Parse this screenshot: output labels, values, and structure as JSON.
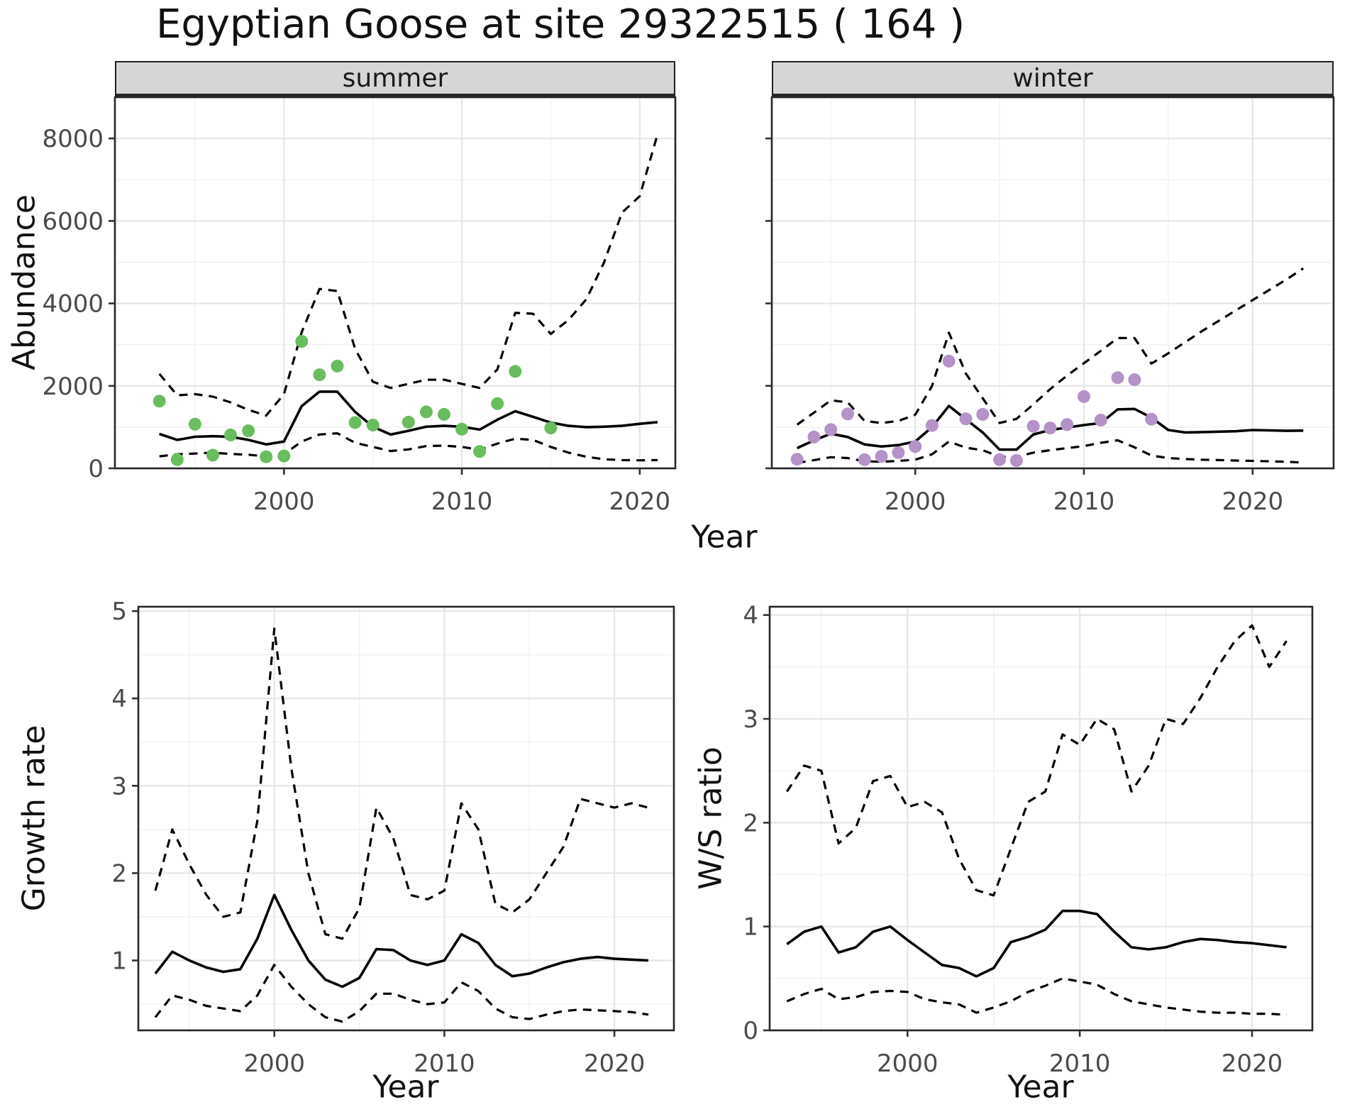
{
  "title": "Egyptian Goose at site 29322515 ( 164 )",
  "labels": {
    "year": "Year",
    "abundance": "Abundance",
    "growth_rate": "Growth rate",
    "ws_ratio": "W/S ratio"
  },
  "colors": {
    "summer_points": "#6ABD5F",
    "winter_points": "#B592C7",
    "line": "#000000",
    "strip_bg": "#D6D6D6",
    "grid_major": "#E6E6E6",
    "grid_minor": "#F0F0F0",
    "tick_text": "#4A4A4A",
    "panel_border": "#262626"
  },
  "chart_data": [
    {
      "id": "abundance-summer",
      "type": "line",
      "facet_label": "summer",
      "xlabel": "Year",
      "ylabel": "Abundance",
      "xlim": [
        1990.5,
        2022
      ],
      "ylim": [
        0,
        9000
      ],
      "xticks": [
        2000,
        2010,
        2020
      ],
      "xminor": [
        1995,
        2005,
        2015
      ],
      "yticks": [
        0,
        2000,
        4000,
        6000,
        8000
      ],
      "yminor": [
        1000,
        3000,
        5000,
        7000
      ],
      "show_ytick_labels": true,
      "years": [
        1993,
        1994,
        1995,
        1996,
        1997,
        1998,
        1999,
        2000,
        2001,
        2002,
        2003,
        2004,
        2005,
        2006,
        2007,
        2008,
        2009,
        2010,
        2011,
        2012,
        2013,
        2014,
        2015,
        2016,
        2017,
        2018,
        2019,
        2020,
        2021
      ],
      "series": [
        {
          "name": "fitted-index",
          "style": "solid",
          "values": [
            835,
            690,
            765,
            780,
            765,
            690,
            580,
            650,
            1510,
            1860,
            1860,
            1370,
            1010,
            820,
            910,
            1010,
            1030,
            1010,
            940,
            1180,
            1385,
            1250,
            1110,
            1030,
            1000,
            1010,
            1030,
            1080,
            1120
          ]
        },
        {
          "name": "upper-ci",
          "style": "dashed",
          "values": [
            2290,
            1770,
            1800,
            1740,
            1600,
            1420,
            1280,
            1800,
            3300,
            4350,
            4300,
            2900,
            2100,
            1950,
            2050,
            2150,
            2150,
            2050,
            1950,
            2400,
            3770,
            3750,
            3260,
            3600,
            4100,
            5000,
            6200,
            6600,
            8100
          ]
        },
        {
          "name": "lower-ci",
          "style": "dashed",
          "values": [
            290,
            340,
            360,
            380,
            350,
            330,
            290,
            340,
            650,
            820,
            850,
            620,
            520,
            420,
            460,
            540,
            550,
            520,
            450,
            600,
            720,
            690,
            520,
            380,
            280,
            220,
            200,
            195,
            200
          ]
        }
      ],
      "points": {
        "name": "observed-counts-summer",
        "color": "#6ABD5F",
        "years": [
          1993,
          1994,
          1995,
          1996,
          1997,
          1998,
          1999,
          2000,
          2001,
          2002,
          2003,
          2004,
          2005,
          2007,
          2008,
          2009,
          2010,
          2011,
          2012,
          2013,
          2015
        ],
        "values": [
          1630,
          210,
          1070,
          320,
          810,
          910,
          280,
          300,
          3080,
          2270,
          2480,
          1110,
          1050,
          1120,
          1370,
          1310,
          950,
          410,
          1570,
          2350,
          980
        ]
      }
    },
    {
      "id": "abundance-winter",
      "type": "line",
      "facet_label": "winter",
      "xlabel": "Year",
      "ylabel": "Abundance",
      "xlim": [
        1991.5,
        2024.8
      ],
      "ylim": [
        0,
        9000
      ],
      "xticks": [
        2000,
        2010,
        2020
      ],
      "xminor": [
        1995,
        2005,
        2015
      ],
      "yticks": [
        0,
        2000,
        4000,
        6000,
        8000
      ],
      "yminor": [
        1000,
        3000,
        5000,
        7000
      ],
      "show_ytick_labels": false,
      "years": [
        1993,
        1994,
        1995,
        1996,
        1997,
        1998,
        1999,
        2000,
        2001,
        2002,
        2003,
        2004,
        2005,
        2006,
        2007,
        2008,
        2009,
        2010,
        2011,
        2012,
        2013,
        2014,
        2015,
        2016,
        2017,
        2018,
        2019,
        2020,
        2021,
        2022,
        2023
      ],
      "series": [
        {
          "name": "fitted-index",
          "style": "solid",
          "values": [
            490,
            680,
            840,
            760,
            580,
            530,
            565,
            650,
            1000,
            1515,
            1190,
            870,
            455,
            455,
            820,
            930,
            990,
            1050,
            1100,
            1430,
            1440,
            1230,
            930,
            870,
            880,
            890,
            900,
            930,
            920,
            910,
            915
          ]
        },
        {
          "name": "upper-ci",
          "style": "dashed",
          "values": [
            1060,
            1350,
            1650,
            1600,
            1150,
            1100,
            1150,
            1300,
            2000,
            3290,
            2300,
            1700,
            1100,
            1200,
            1550,
            1920,
            2250,
            2550,
            2850,
            3160,
            3160,
            2540,
            2790,
            3060,
            3330,
            3580,
            3830,
            4080,
            4330,
            4580,
            4850
          ]
        },
        {
          "name": "lower-ci",
          "style": "dashed",
          "values": [
            130,
            200,
            270,
            250,
            170,
            160,
            180,
            210,
            340,
            650,
            500,
            440,
            280,
            280,
            380,
            440,
            490,
            540,
            620,
            680,
            510,
            310,
            250,
            225,
            210,
            200,
            190,
            180,
            170,
            160,
            140
          ]
        }
      ],
      "points": {
        "name": "observed-counts-winter",
        "color": "#B592C7",
        "years": [
          1993,
          1994,
          1995,
          1996,
          1997,
          1998,
          1999,
          2000,
          2001,
          2002,
          2003,
          2004,
          2005,
          2006,
          2007,
          2008,
          2009,
          2010,
          2011,
          2012,
          2013,
          2014
        ],
        "values": [
          220,
          760,
          940,
          1320,
          210,
          290,
          380,
          530,
          1040,
          2600,
          1200,
          1310,
          210,
          190,
          1020,
          980,
          1060,
          1740,
          1170,
          2200,
          2150,
          1190
        ]
      }
    },
    {
      "id": "growth-rate",
      "type": "line",
      "facet_label": "",
      "xlabel": "Year",
      "ylabel": "Growth rate",
      "xlim": [
        1992,
        2023.5
      ],
      "ylim": [
        0.2,
        5.05
      ],
      "xticks": [
        2000,
        2010,
        2020
      ],
      "xminor": [
        1995,
        2005,
        2015
      ],
      "yticks": [
        1,
        2,
        3,
        4,
        5
      ],
      "yminor": [
        0.5,
        1.5,
        2.5,
        3.5,
        4.5
      ],
      "show_ytick_labels": true,
      "years": [
        1993,
        1994,
        1995,
        1996,
        1997,
        1998,
        1999,
        2000,
        2001,
        2002,
        2003,
        2004,
        2005,
        2006,
        2007,
        2008,
        2009,
        2010,
        2011,
        2012,
        2013,
        2014,
        2015,
        2016,
        2017,
        2018,
        2019,
        2020,
        2021,
        2022
      ],
      "series": [
        {
          "name": "growth-rate-mean",
          "style": "solid",
          "values": [
            0.85,
            1.1,
            1.0,
            0.92,
            0.87,
            0.9,
            1.25,
            1.75,
            1.35,
            1.0,
            0.78,
            0.7,
            0.8,
            1.13,
            1.12,
            1.0,
            0.95,
            1.0,
            1.3,
            1.2,
            0.95,
            0.82,
            0.85,
            0.92,
            0.98,
            1.02,
            1.04,
            1.02,
            1.01,
            1.0
          ]
        },
        {
          "name": "upper-ci",
          "style": "dashed",
          "values": [
            1.8,
            2.5,
            2.1,
            1.75,
            1.5,
            1.55,
            2.6,
            4.8,
            3.2,
            2.0,
            1.3,
            1.25,
            1.6,
            2.75,
            2.4,
            1.75,
            1.7,
            1.8,
            2.8,
            2.5,
            1.65,
            1.55,
            1.7,
            2.0,
            2.3,
            2.85,
            2.8,
            2.75,
            2.8,
            2.75
          ]
        },
        {
          "name": "lower-ci",
          "style": "dashed",
          "values": [
            0.35,
            0.6,
            0.55,
            0.48,
            0.45,
            0.42,
            0.6,
            0.95,
            0.7,
            0.5,
            0.35,
            0.3,
            0.42,
            0.62,
            0.62,
            0.55,
            0.5,
            0.52,
            0.75,
            0.65,
            0.45,
            0.35,
            0.33,
            0.38,
            0.42,
            0.44,
            0.43,
            0.42,
            0.41,
            0.38
          ]
        }
      ],
      "points": null
    },
    {
      "id": "ws-ratio",
      "type": "line",
      "facet_label": "",
      "xlabel": "Year",
      "ylabel": "W/S ratio",
      "xlim": [
        1992,
        2023.5
      ],
      "ylim": [
        0,
        4.08
      ],
      "xticks": [
        2000,
        2010,
        2020
      ],
      "xminor": [
        1995,
        2005,
        2015
      ],
      "yticks": [
        0,
        1,
        2,
        3,
        4
      ],
      "yminor": [
        0.5,
        1.5,
        2.5,
        3.5
      ],
      "show_ytick_labels": true,
      "years": [
        1993,
        1994,
        1995,
        1996,
        1997,
        1998,
        1999,
        2000,
        2001,
        2002,
        2003,
        2004,
        2005,
        2006,
        2007,
        2008,
        2009,
        2010,
        2011,
        2012,
        2013,
        2014,
        2015,
        2016,
        2017,
        2018,
        2019,
        2020,
        2021,
        2022
      ],
      "series": [
        {
          "name": "ws-ratio-mean",
          "style": "solid",
          "values": [
            0.83,
            0.95,
            1.0,
            0.75,
            0.8,
            0.95,
            1.0,
            0.87,
            0.75,
            0.63,
            0.6,
            0.52,
            0.6,
            0.85,
            0.9,
            0.97,
            1.15,
            1.15,
            1.12,
            0.95,
            0.8,
            0.78,
            0.8,
            0.85,
            0.88,
            0.87,
            0.85,
            0.84,
            0.82,
            0.8
          ]
        },
        {
          "name": "upper-ci",
          "style": "dashed",
          "values": [
            2.3,
            2.55,
            2.5,
            1.8,
            1.95,
            2.4,
            2.45,
            2.15,
            2.2,
            2.1,
            1.65,
            1.35,
            1.3,
            1.75,
            2.2,
            2.3,
            2.85,
            2.75,
            3.0,
            2.9,
            2.3,
            2.55,
            3.0,
            2.95,
            3.2,
            3.5,
            3.75,
            3.9,
            3.5,
            3.75
          ]
        },
        {
          "name": "lower-ci",
          "style": "dashed",
          "values": [
            0.28,
            0.35,
            0.4,
            0.3,
            0.32,
            0.37,
            0.38,
            0.37,
            0.3,
            0.27,
            0.25,
            0.17,
            0.22,
            0.28,
            0.37,
            0.43,
            0.5,
            0.47,
            0.44,
            0.35,
            0.28,
            0.25,
            0.22,
            0.2,
            0.18,
            0.17,
            0.17,
            0.16,
            0.16,
            0.15
          ]
        }
      ],
      "points": null
    }
  ]
}
